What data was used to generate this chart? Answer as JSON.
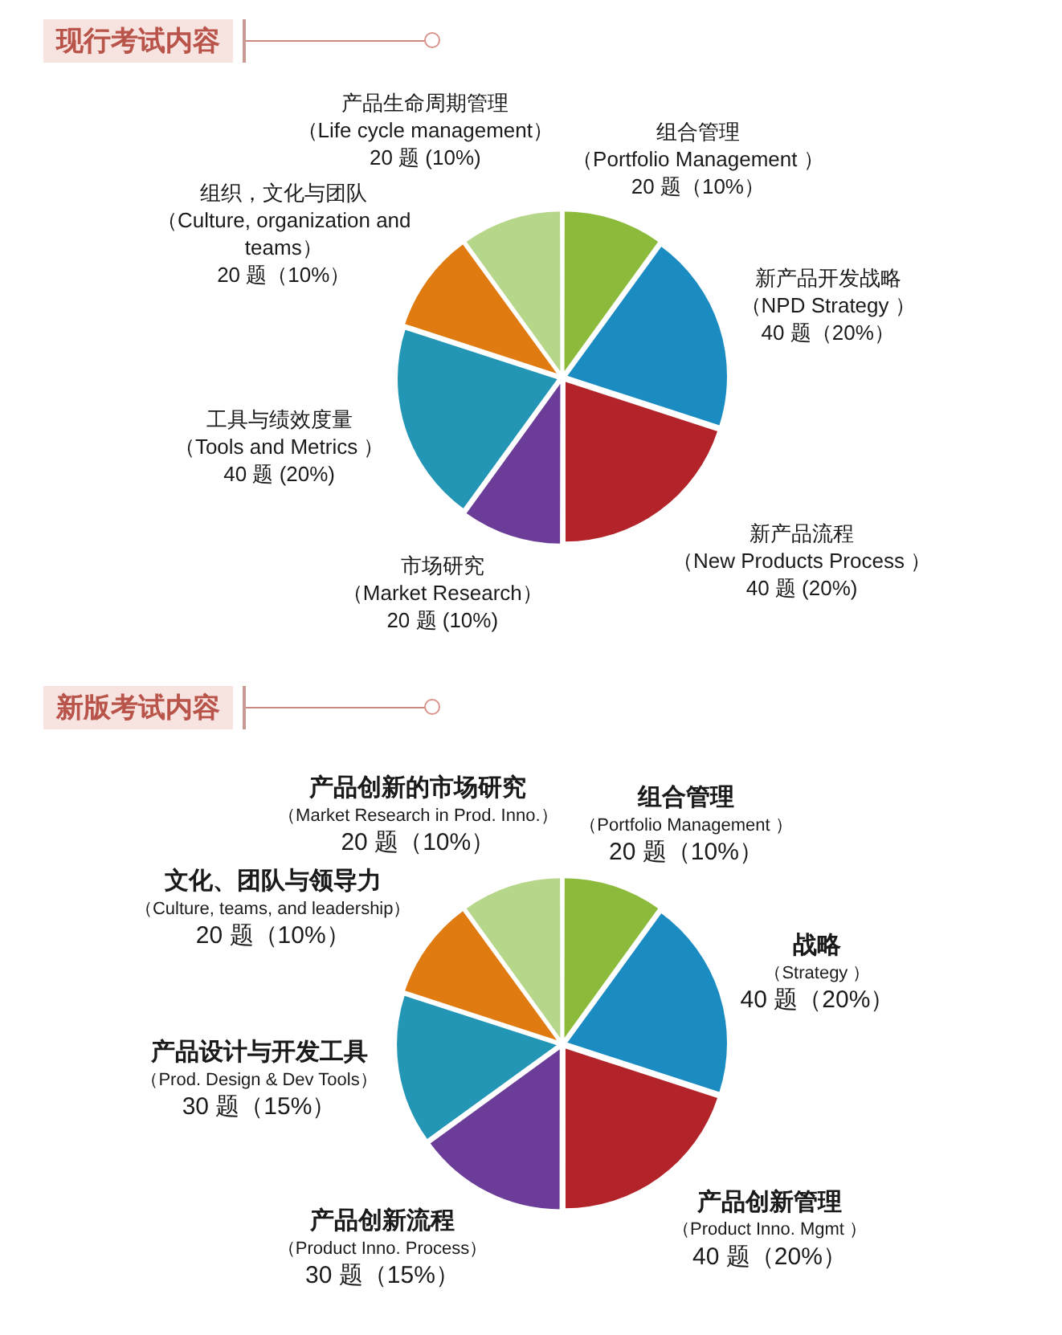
{
  "chart_data": [
    {
      "type": "pie",
      "title": "现行考试内容",
      "categories": [
        "组合管理（Portfolio Management ）",
        "新产品开发战略（NPD Strategy ）",
        "新产品流程（New Products Process ）",
        "市场研究（Market Research）",
        "工具与绩效度量（Tools and Metrics ）",
        "组织，文化与团队（Culture, organization and teams）",
        "产品生命周期管理（Life cycle management）"
      ],
      "values": [
        20,
        40,
        40,
        20,
        40,
        20,
        20
      ],
      "value_labels": [
        "20 题（10%）",
        "40 题（20%）",
        "40 题 (20%)",
        "20 题 (10%)",
        "40 题 (20%)",
        "20 题（10%）",
        "20 题 (10%)"
      ],
      "colors": [
        "#8cbb3c",
        "#1b8cc2",
        "#b3242a",
        "#6b3d98",
        "#2396b5",
        "#e07b12",
        "#b6d68a"
      ]
    },
    {
      "type": "pie",
      "title": "新版考试内容",
      "categories": [
        "组合管理（Portfolio Management ）",
        "战略（Strategy ）",
        "产品创新管理（Product Inno. Mgmt ）",
        "产品创新流程（Product Inno. Process）",
        "产品设计与开发工具（Prod. Design & Dev Tools）",
        "文化、团队与领导力（Culture, teams, and leadership）",
        "产品创新的市场研究（Market Research in Prod. Inno.）"
      ],
      "values": [
        20,
        40,
        40,
        30,
        30,
        20,
        20
      ],
      "value_labels": [
        "20 题（10%）",
        "40 题（20%）",
        "40 题（20%）",
        "30 题（15%）",
        "30 题（15%）",
        "20 题（10%）",
        "20 题（10%）"
      ],
      "colors": [
        "#8cbb3c",
        "#1b8cc2",
        "#b3242a",
        "#6b3d98",
        "#2396b5",
        "#e07b12",
        "#b6d68a"
      ]
    }
  ]
}
